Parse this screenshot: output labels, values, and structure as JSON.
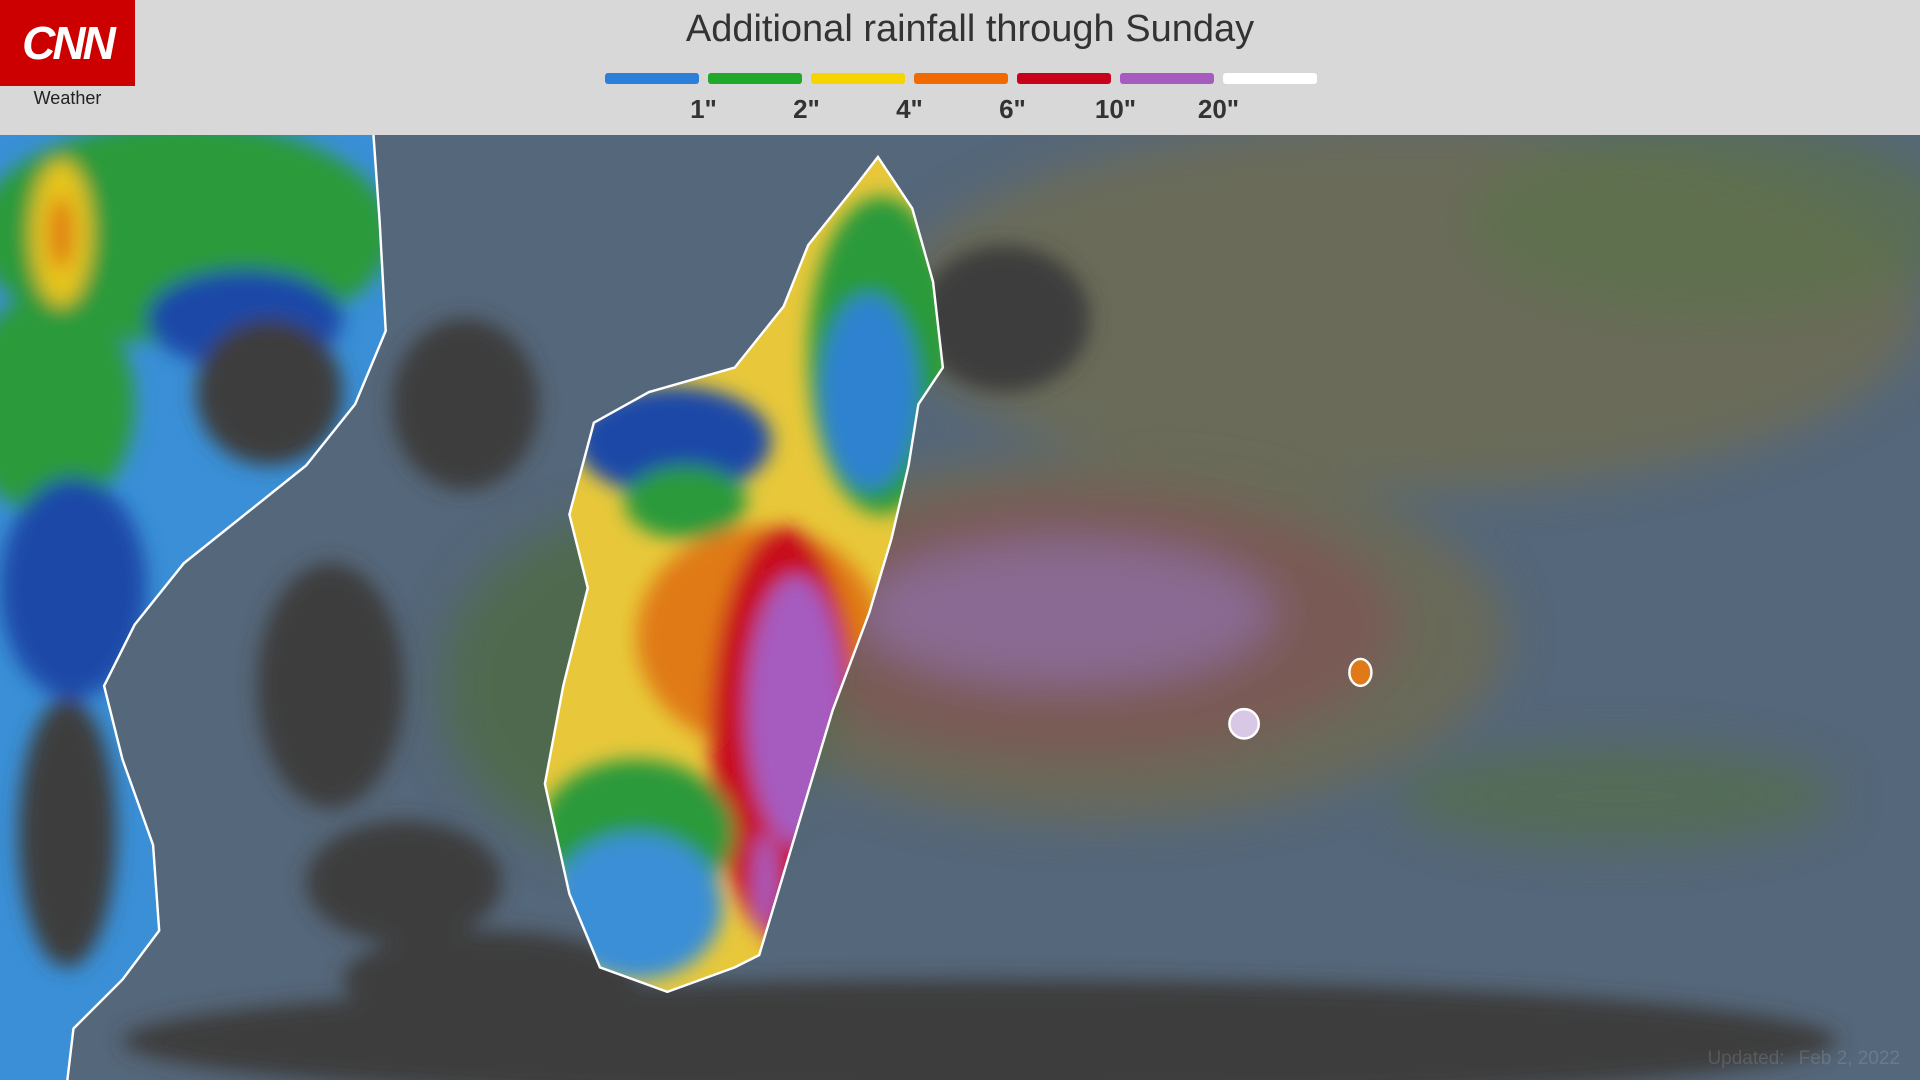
{
  "header": {
    "logo": "CNN",
    "logo_subtitle": "Weather",
    "title": "Additional rainfall through Sunday"
  },
  "legend": {
    "colors": [
      "#2b7fd8",
      "#1fa82a",
      "#f5d400",
      "#f06a00",
      "#c8001a",
      "#a65cbf",
      "#ffffff"
    ],
    "labels": [
      "1\"",
      "2\"",
      "4\"",
      "6\"",
      "10\"",
      "20\""
    ]
  },
  "footer": {
    "updated_label": "Updated:",
    "updated_date": "Feb 2, 2022"
  }
}
